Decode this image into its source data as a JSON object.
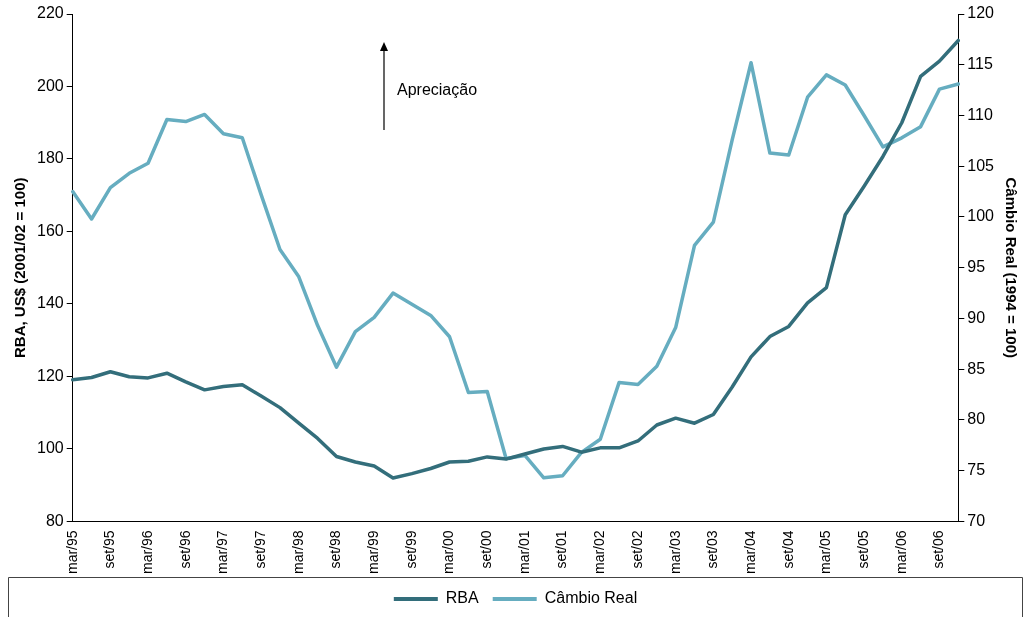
{
  "chart_data": {
    "type": "line",
    "categories": [
      "mar/95",
      null,
      "set/95",
      null,
      "mar/96",
      null,
      "set/96",
      null,
      "mar/97",
      null,
      "set/97",
      null,
      "mar/98",
      null,
      "set/98",
      null,
      "mar/99",
      null,
      "set/99",
      null,
      "mar/00",
      null,
      "set/00",
      null,
      "mar/01",
      null,
      "set/01",
      null,
      "mar/02",
      null,
      "set/02",
      null,
      "mar/03",
      null,
      "set/03",
      null,
      "mar/04",
      null,
      "set/04",
      null,
      "mar/05",
      null,
      "set/05",
      null,
      "mar/06",
      null,
      "set/06",
      null
    ],
    "ylabel": "RBA, US$ (2001/02 = 100)",
    "y2label": "Câmbio Real (1994 = 100)",
    "ylim": [
      80,
      220
    ],
    "yticks": [
      80,
      100,
      120,
      140,
      160,
      180,
      200,
      220
    ],
    "y2lim": [
      70,
      120
    ],
    "y2ticks": [
      70,
      75,
      80,
      85,
      90,
      95,
      100,
      105,
      110,
      115,
      120
    ],
    "annotations": [
      "Apreciação"
    ],
    "legend": "bottom",
    "grid": false,
    "marker": "none",
    "line_style": "solid",
    "series": [
      {
        "name": "RBA",
        "color": "#336e7b",
        "values": [
          119.1,
          119.7,
          121.3,
          119.9,
          119.6,
          120.9,
          118.5,
          116.3,
          117.2,
          117.7,
          114.6,
          111.4,
          107.1,
          102.9,
          97.9,
          96.4,
          95.3,
          92.0,
          93.2,
          94.6,
          96.4,
          96.6,
          97.8,
          97.2,
          98.6,
          100.0,
          100.7,
          99.1,
          100.3,
          100.3,
          102.2,
          106.6,
          108.5,
          107.1,
          109.5,
          117.1,
          125.4,
          131.0,
          133.8,
          140.3,
          144.5,
          164.6,
          172.5,
          180.7,
          190.0,
          202.8,
          207.0,
          212.7
        ]
      },
      {
        "name": "Câmbio Real",
        "color": "#66adc0",
        "axis": "y2",
        "values": [
          102.5,
          99.8,
          102.9,
          104.3,
          105.3,
          109.6,
          109.4,
          110.1,
          108.2,
          107.8,
          102.2,
          96.8,
          94.1,
          89.3,
          85.2,
          88.7,
          90.1,
          92.5,
          91.4,
          90.3,
          88.2,
          82.7,
          82.8,
          76.2,
          76.5,
          74.3,
          74.5,
          76.8,
          78.1,
          83.7,
          83.5,
          85.3,
          89.1,
          97.2,
          99.5,
          107.6,
          115.2,
          106.3,
          106.1,
          111.8,
          114.0,
          113.0,
          110.0,
          106.9,
          107.8,
          108.9,
          112.6,
          113.1
        ]
      }
    ]
  }
}
